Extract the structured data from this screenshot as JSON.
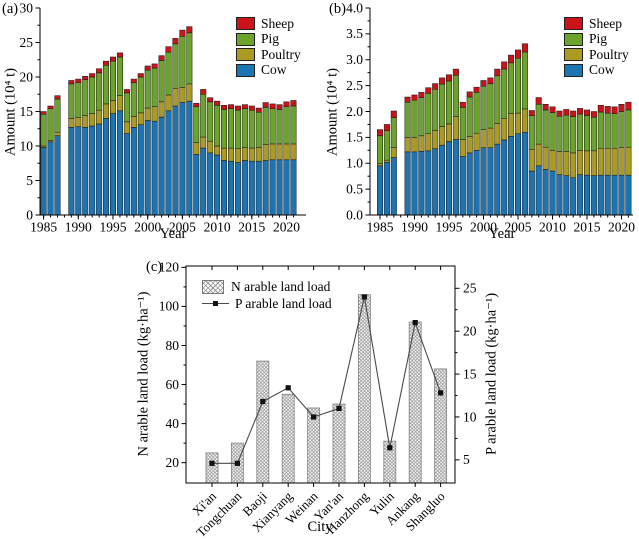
{
  "figure": {
    "background": "#ffffff"
  },
  "chart_data": [
    {
      "id": "a",
      "type": "bar",
      "stacked": true,
      "panel_label": "(a)",
      "xlabel": "Year",
      "ylabel": "Amount (10⁴ t)",
      "ylim": [
        0,
        30
      ],
      "ytick_step": 5,
      "ytick_labels": [
        "0",
        "5",
        "10",
        "15",
        "20",
        "25",
        "30"
      ],
      "xtick_years": [
        1985,
        1990,
        1995,
        2000,
        2005,
        2010,
        2015,
        2020
      ],
      "years": [
        1985,
        1986,
        1987,
        1988,
        1989,
        1990,
        1991,
        1992,
        1993,
        1994,
        1995,
        1996,
        1997,
        1998,
        1999,
        2000,
        2001,
        2002,
        2003,
        2004,
        2005,
        2006,
        2007,
        2008,
        2009,
        2010,
        2011,
        2012,
        2013,
        2014,
        2015,
        2016,
        2017,
        2018,
        2019,
        2020,
        2021
      ],
      "legend": [
        {
          "name": "Sheep",
          "color": "#c9151a"
        },
        {
          "name": "Pig",
          "color": "#6ba32b"
        },
        {
          "name": "Poultry",
          "color": "#ab9b22"
        },
        {
          "name": "Cow",
          "color": "#1c74b2"
        }
      ],
      "series": [
        {
          "name": "Cow",
          "color": "#1c74b2",
          "values": [
            9.8,
            10.6,
            11.5,
            null,
            12.7,
            12.8,
            12.7,
            12.9,
            13.2,
            14.0,
            14.7,
            15.1,
            11.8,
            12.7,
            13.1,
            13.7,
            13.6,
            14.2,
            15.1,
            15.8,
            16.3,
            16.5,
            8.8,
            9.7,
            9.0,
            8.7,
            7.9,
            7.8,
            7.6,
            7.9,
            7.8,
            7.8,
            7.9,
            8.0,
            8.0,
            8.0,
            8.0
          ]
        },
        {
          "name": "Poultry",
          "color": "#ab9b22",
          "values": [
            0.2,
            0.2,
            0.5,
            null,
            1.3,
            1.3,
            1.7,
            1.8,
            2.0,
            2.1,
            1.9,
            2.2,
            1.7,
            1.6,
            1.7,
            1.8,
            2.1,
            2.2,
            2.3,
            2.5,
            2.2,
            2.5,
            1.7,
            1.6,
            1.7,
            1.3,
            1.8,
            1.9,
            2.0,
            1.9,
            1.9,
            2.0,
            2.3,
            2.3,
            2.3,
            2.3,
            2.3
          ]
        },
        {
          "name": "Pig",
          "color": "#6ba32b",
          "values": [
            4.6,
            4.6,
            4.8,
            null,
            5.0,
            5.1,
            5.2,
            5.3,
            5.4,
            5.6,
            5.7,
            5.6,
            4.2,
            4.9,
            5.2,
            5.5,
            5.6,
            6.0,
            6.2,
            6.5,
            7.4,
            7.4,
            5.2,
            6.2,
            5.7,
            5.9,
            5.6,
            5.7,
            5.6,
            5.6,
            5.5,
            5.1,
            5.4,
            5.1,
            5.0,
            5.4,
            5.5
          ]
        },
        {
          "name": "Sheep",
          "color": "#c9151a",
          "values": [
            0.4,
            0.4,
            0.5,
            null,
            0.5,
            0.5,
            0.5,
            0.5,
            0.6,
            0.6,
            0.6,
            0.6,
            0.5,
            0.5,
            0.5,
            0.6,
            0.6,
            0.7,
            0.8,
            0.8,
            0.9,
            0.9,
            0.5,
            0.7,
            0.6,
            0.6,
            0.6,
            0.6,
            0.6,
            0.6,
            0.6,
            0.6,
            0.7,
            0.7,
            0.7,
            0.7,
            0.8
          ]
        }
      ]
    },
    {
      "id": "b",
      "type": "bar",
      "stacked": true,
      "panel_label": "(b)",
      "xlabel": "Year",
      "ylabel": "Amount (10⁴ t)",
      "ylim": [
        0,
        4.0
      ],
      "ytick_step": 0.5,
      "ytick_labels": [
        "0.0",
        "0.5",
        "1.0",
        "1.5",
        "2.0",
        "2.5",
        "3.0",
        "3.5",
        "4.0"
      ],
      "xtick_years": [
        1985,
        1990,
        1995,
        2000,
        2005,
        2010,
        2015,
        2020
      ],
      "years": [
        1985,
        1986,
        1987,
        1988,
        1989,
        1990,
        1991,
        1992,
        1993,
        1994,
        1995,
        1996,
        1997,
        1998,
        1999,
        2000,
        2001,
        2002,
        2003,
        2004,
        2005,
        2006,
        2007,
        2008,
        2009,
        2010,
        2011,
        2012,
        2013,
        2014,
        2015,
        2016,
        2017,
        2018,
        2019,
        2020,
        2021
      ],
      "legend": [
        {
          "name": "Sheep",
          "color": "#c9151a"
        },
        {
          "name": "Pig",
          "color": "#6ba32b"
        },
        {
          "name": "Poultry",
          "color": "#ab9b22"
        },
        {
          "name": "Cow",
          "color": "#1c74b2"
        }
      ],
      "series": [
        {
          "name": "Cow",
          "color": "#1c74b2",
          "values": [
            0.95,
            1.02,
            1.11,
            null,
            1.22,
            1.22,
            1.23,
            1.24,
            1.28,
            1.35,
            1.42,
            1.46,
            1.13,
            1.2,
            1.25,
            1.3,
            1.3,
            1.37,
            1.45,
            1.52,
            1.57,
            1.6,
            0.85,
            0.95,
            0.88,
            0.85,
            0.78,
            0.76,
            0.72,
            0.78,
            0.77,
            0.76,
            0.77,
            0.77,
            0.77,
            0.77,
            0.77
          ]
        },
        {
          "name": "Poultry",
          "color": "#ab9b22",
          "values": [
            0.04,
            0.04,
            0.19,
            null,
            0.28,
            0.28,
            0.3,
            0.33,
            0.35,
            0.36,
            0.34,
            0.44,
            0.33,
            0.32,
            0.33,
            0.35,
            0.38,
            0.4,
            0.42,
            0.44,
            0.4,
            0.45,
            0.42,
            0.42,
            0.43,
            0.4,
            0.45,
            0.47,
            0.48,
            0.47,
            0.47,
            0.48,
            0.52,
            0.52,
            0.52,
            0.53,
            0.54
          ]
        },
        {
          "name": "Pig",
          "color": "#6ba32b",
          "values": [
            0.54,
            0.57,
            0.58,
            null,
            0.68,
            0.72,
            0.74,
            0.78,
            0.8,
            0.82,
            0.83,
            0.8,
            0.62,
            0.76,
            0.79,
            0.84,
            0.86,
            0.92,
            0.95,
            0.98,
            1.06,
            1.1,
            0.65,
            0.77,
            0.72,
            0.73,
            0.68,
            0.7,
            0.7,
            0.7,
            0.68,
            0.65,
            0.7,
            0.68,
            0.67,
            0.7,
            0.72
          ]
        },
        {
          "name": "Sheep",
          "color": "#c9151a",
          "values": [
            0.12,
            0.12,
            0.13,
            null,
            0.1,
            0.1,
            0.1,
            0.11,
            0.11,
            0.12,
            0.12,
            0.12,
            0.1,
            0.1,
            0.1,
            0.11,
            0.11,
            0.13,
            0.14,
            0.15,
            0.16,
            0.16,
            0.1,
            0.13,
            0.11,
            0.11,
            0.1,
            0.11,
            0.11,
            0.11,
            0.11,
            0.11,
            0.13,
            0.13,
            0.13,
            0.14,
            0.15
          ]
        }
      ]
    },
    {
      "id": "c",
      "type": "bar+line",
      "panel_label": "(c)",
      "xlabel": "City",
      "ylabel_left": "N arable land load (kg·ha⁻¹)",
      "ylabel_right": "P arable land load (kg·ha⁻¹)",
      "categories": [
        "Xi'an",
        "Tongchuan",
        "Baoji",
        "Xianyang",
        "Weinan",
        "Yan'an",
        "Hanzhong",
        "Yulin",
        "Ankang",
        "Shangluo"
      ],
      "bar_series": {
        "name": "N arable land load",
        "values": [
          25,
          30,
          72,
          55,
          48,
          50,
          106,
          31,
          92,
          68
        ]
      },
      "line_series": {
        "name": "P arable land load",
        "values": [
          4.6,
          4.6,
          11.8,
          13.4,
          10.0,
          11.0,
          24.0,
          6.4,
          21.0,
          12.8
        ]
      },
      "left_ticks": [
        20,
        40,
        60,
        80,
        100,
        120
      ],
      "right_ticks": [
        5,
        10,
        15,
        20,
        25
      ],
      "left_ylim": [
        9.6,
        120.7
      ],
      "right_ylim": [
        2.3,
        27.6
      ],
      "line_color": "#4a4a4a",
      "marker_color": "#111111"
    }
  ]
}
